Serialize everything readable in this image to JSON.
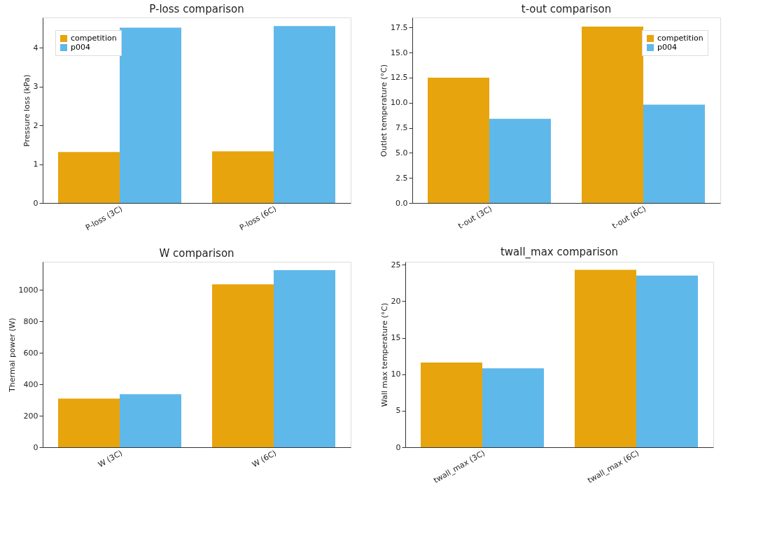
{
  "chart_data": [
    {
      "type": "bar",
      "title": "P-loss comparison",
      "ylabel": "Pressure loss (kPa)",
      "categories": [
        "P-loss (3C)",
        "P-loss (6C)"
      ],
      "series": [
        {
          "name": "competition",
          "color": "#e69f00",
          "values": [
            1.31,
            1.33
          ]
        },
        {
          "name": "p004",
          "color": "#56b4e9",
          "values": [
            4.52,
            4.56
          ]
        }
      ],
      "ylim": [
        0,
        4.78
      ],
      "yticks": [
        0,
        1,
        2,
        3,
        4
      ],
      "legend": "top left"
    },
    {
      "type": "bar",
      "title": "t-out comparison",
      "ylabel": "Outlet temperature (°C)",
      "categories": [
        "t-out (3C)",
        "t-out (6C)"
      ],
      "series": [
        {
          "name": "competition",
          "color": "#e69f00",
          "values": [
            12.5,
            17.6
          ]
        },
        {
          "name": "p004",
          "color": "#56b4e9",
          "values": [
            8.4,
            9.8
          ]
        }
      ],
      "ylim": [
        0,
        18.5
      ],
      "yticks": [
        {
          "value": 0,
          "label": "0.0"
        },
        2.5,
        {
          "value": 5,
          "label": "5.0"
        },
        7.5,
        {
          "value": 10,
          "label": "10.0"
        },
        12.5,
        {
          "value": 15,
          "label": "15.0"
        },
        17.5
      ],
      "legend": "top right"
    },
    {
      "type": "bar",
      "title": "W comparison",
      "ylabel": "Thermal power (W)",
      "categories": [
        "W (3C)",
        "W (6C)"
      ],
      "series": [
        {
          "name": "competition",
          "color": "#e69f00",
          "values": [
            310,
            1036
          ]
        },
        {
          "name": "p004",
          "color": "#56b4e9",
          "values": [
            337,
            1127
          ]
        }
      ],
      "ylim": [
        0,
        1180
      ],
      "yticks": [
        0,
        200,
        400,
        600,
        800,
        1000
      ],
      "legend": "top left"
    },
    {
      "type": "bar",
      "title": "twall_max comparison",
      "ylabel": "Wall max temperature (°C)",
      "categories": [
        "twall_max (3C)",
        "twall_max (6C)"
      ],
      "series": [
        {
          "name": "competition",
          "color": "#e69f00",
          "values": [
            11.6,
            24.3
          ]
        },
        {
          "name": "p004",
          "color": "#56b4e9",
          "values": [
            10.8,
            23.5
          ]
        }
      ],
      "ylim": [
        0,
        25.4
      ],
      "yticks": [
        0,
        5,
        10,
        15,
        20,
        25
      ],
      "legend": "top left"
    }
  ]
}
